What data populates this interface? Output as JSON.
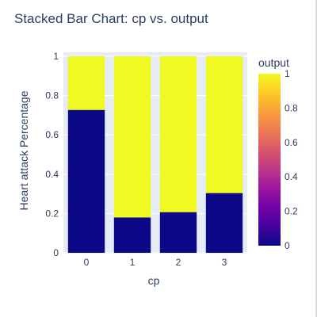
{
  "chart_data": {
    "type": "bar",
    "barmode": "stack",
    "title": "Stacked Bar Chart: cp vs. output",
    "xlabel": "cp",
    "ylabel": "Heart attack Percentage",
    "categories": [
      "0",
      "1",
      "2",
      "3"
    ],
    "ylim": [
      0,
      1
    ],
    "yticks": [
      "0",
      "0.2",
      "0.4",
      "0.6",
      "0.8",
      "1"
    ],
    "grid": true,
    "series": [
      {
        "output": 0,
        "values": [
          0.727,
          0.18,
          0.207,
          0.304
        ],
        "color": "#0d0887"
      },
      {
        "output": 1,
        "values": [
          0.273,
          0.82,
          0.793,
          0.696
        ],
        "color": "#f0f921"
      }
    ],
    "colorbar": {
      "title": "output",
      "range": [
        0,
        1
      ],
      "ticks": [
        "0",
        "0.2",
        "0.4",
        "0.6",
        "0.8",
        "1"
      ],
      "colorscale": [
        "#0d0887",
        "#46039f",
        "#7201a8",
        "#9c179e",
        "#bd3786",
        "#d8576b",
        "#ed7953",
        "#fb9f3a",
        "#fdca26",
        "#f0f921"
      ]
    },
    "plot_background": "#e5ecf6"
  }
}
